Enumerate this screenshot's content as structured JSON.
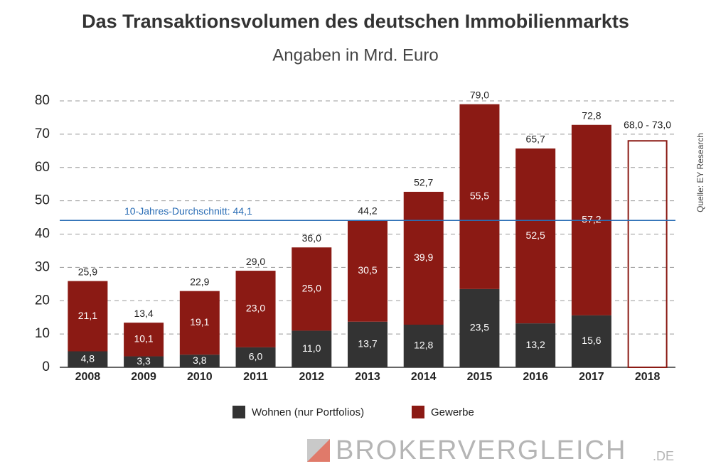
{
  "chart_data": {
    "type": "stacked-bar",
    "title": "Das Transaktionsvolumen des deutschen Immobilienmarkts",
    "subtitle": "Angaben in Mrd. Euro",
    "categories": [
      "2008",
      "2009",
      "2010",
      "2011",
      "2012",
      "2013",
      "2014",
      "2015",
      "2016",
      "2017",
      "2018"
    ],
    "series": [
      {
        "name": "Wohnen (nur Portfolios)",
        "color": "#333333",
        "values": [
          4.8,
          3.3,
          3.8,
          6.0,
          11.0,
          13.7,
          12.8,
          23.5,
          13.2,
          15.6,
          null
        ],
        "value_labels": [
          "4,8",
          "3,3",
          "3,8",
          "6,0",
          "11,0",
          "13,7",
          "12,8",
          "23,5",
          "13,2",
          "15,6",
          null
        ]
      },
      {
        "name": "Gewerbe",
        "color": "#8b1a14",
        "values": [
          21.1,
          10.1,
          19.1,
          23.0,
          25.0,
          30.5,
          39.9,
          55.5,
          52.5,
          57.2,
          null
        ],
        "value_labels": [
          "21,1",
          "10,1",
          "19,1",
          "23,0",
          "25,0",
          "30,5",
          "39,9",
          "55,5",
          "52,5",
          "57,2",
          null
        ]
      }
    ],
    "totals": {
      "values": [
        25.9,
        13.4,
        22.9,
        29.0,
        36.0,
        44.2,
        52.7,
        79.0,
        65.7,
        72.8,
        null
      ],
      "value_labels": [
        "25,9",
        "13,4",
        "22,9",
        "29,0",
        "36,0",
        "44,2",
        "52,7",
        "79,0",
        "65,7",
        "72,8",
        null
      ]
    },
    "forecast": {
      "low": 68.0,
      "high": 73.0,
      "label": "68,0 - 73,0",
      "color": "#8b1a14"
    },
    "average": {
      "value": 44.1,
      "label": "10-Jahres-Durchschnitt: 44,1",
      "color": "#2a6db5"
    },
    "ylim": [
      0,
      80
    ],
    "yticks": [
      0,
      10,
      20,
      30,
      40,
      50,
      60,
      70,
      80
    ],
    "grid": true,
    "source": "Quelle:  EY Research",
    "watermark": {
      "brand": "BROKERVERGLEICH",
      "suffix": ".DE"
    }
  }
}
